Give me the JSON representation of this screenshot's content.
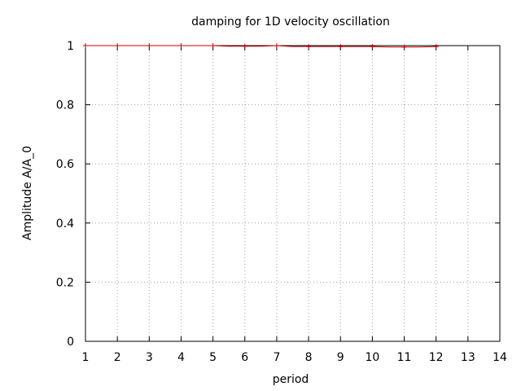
{
  "chart_data": {
    "type": "line",
    "title": "damping for 1D velocity oscillation",
    "xlabel": "period",
    "ylabel": "Amplitude A/A_0",
    "xlim": [
      1,
      14
    ],
    "ylim": [
      0,
      1
    ],
    "grid": true,
    "x_ticks": [
      "1",
      "2",
      "3",
      "4",
      "5",
      "6",
      "7",
      "8",
      "9",
      "10",
      "11",
      "12",
      "13",
      "14"
    ],
    "y_ticks": [
      "0",
      "0.2",
      "0.4",
      "0.6",
      "0.8",
      "1"
    ],
    "series": [
      {
        "color": "#cc0000",
        "x": [
          1,
          2,
          3,
          4,
          5,
          5.5,
          6,
          6.5,
          7,
          7.5,
          8,
          8.5,
          9,
          9.5,
          10,
          10.5,
          11,
          11.5,
          12
        ],
        "y": [
          1,
          1,
          1,
          1,
          1,
          0.998,
          0.998,
          0.998,
          1,
          0.997,
          0.997,
          0.997,
          0.997,
          0.997,
          0.997,
          0.995,
          0.995,
          0.995,
          0.997
        ]
      }
    ]
  }
}
